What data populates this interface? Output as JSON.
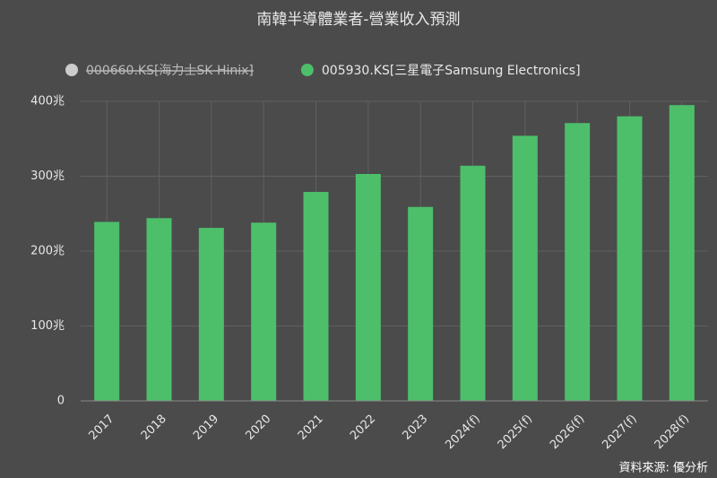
{
  "chart_data": {
    "type": "bar",
    "title": "南韓半導體業者-營業收入預測",
    "categories": [
      "2017",
      "2018",
      "2019",
      "2020",
      "2021",
      "2022",
      "2023",
      "2024(f)",
      "2025(f)",
      "2026(f)",
      "2027(f)",
      "2028(f)"
    ],
    "series": [
      {
        "name": "000660.KS[海力士SK Hinix]",
        "color": "#cccccc",
        "hidden": true,
        "values": [
          null,
          null,
          null,
          null,
          null,
          null,
          null,
          null,
          null,
          null,
          null,
          null
        ]
      },
      {
        "name": "005930.KS[三星電子Samsung Electronics]",
        "color": "#4dbf6b",
        "values": [
          239,
          244,
          231,
          238,
          279,
          303,
          259,
          314,
          354,
          371,
          380,
          395
        ]
      }
    ],
    "ylim": [
      0,
      400
    ],
    "yticks": [
      0,
      {
        "value": 100,
        "label": "100兆"
      },
      {
        "value": 200,
        "label": "200兆"
      },
      {
        "value": 300,
        "label": "300兆"
      },
      {
        "value": 400,
        "label": "400兆"
      }
    ],
    "grid": true,
    "source": "資料來源: 優分析"
  }
}
